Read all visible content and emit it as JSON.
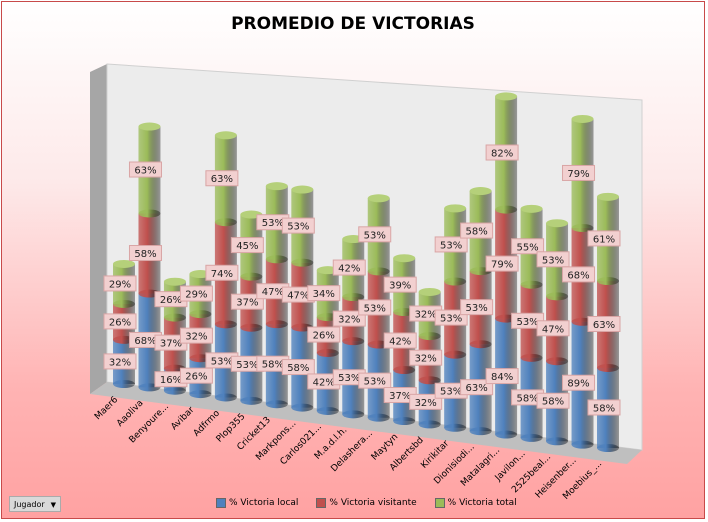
{
  "chart_data": {
    "type": "bar",
    "subtype": "3d-stacked-cylinder",
    "title": "PROMEDIO DE VICTORIAS",
    "categories": [
      "Maer6",
      "Aaoliva",
      "Benyoure...",
      "Avibar",
      "Adfrmo",
      "Plop355",
      "Cricket13",
      "Markpons...",
      "Carlos021...",
      "M.a.d.l.h.",
      "Delashera...",
      "Maytyn",
      "Albertsbd",
      "Kirikitar",
      "Dionisiodi...",
      "Matalagri...",
      "Javilon...",
      "2525beal...",
      "Heisenber...",
      "Moebius_..."
    ],
    "series": [
      {
        "name": "% Victoria local",
        "color": "#4f81bd",
        "values": [
          32,
          68,
          16,
          26,
          53,
          53,
          58,
          58,
          42,
          53,
          53,
          37,
          32,
          53,
          63,
          84,
          58,
          58,
          89,
          58
        ]
      },
      {
        "name": "% Victoria visitante",
        "color": "#c0504d",
        "values": [
          26,
          58,
          37,
          32,
          74,
          37,
          47,
          47,
          26,
          32,
          53,
          42,
          32,
          53,
          53,
          79,
          53,
          47,
          68,
          63
        ]
      },
      {
        "name": "% Victoria total",
        "color": "#9bbb59",
        "values": [
          29,
          63,
          26,
          29,
          63,
          45,
          53,
          53,
          34,
          42,
          53,
          39,
          32,
          53,
          58,
          82,
          55,
          53,
          79,
          61
        ]
      }
    ],
    "value_suffix": "%",
    "legend_position": "bottom"
  },
  "filter": {
    "label": "Jugador",
    "icon": "dropdown-arrow-icon"
  }
}
